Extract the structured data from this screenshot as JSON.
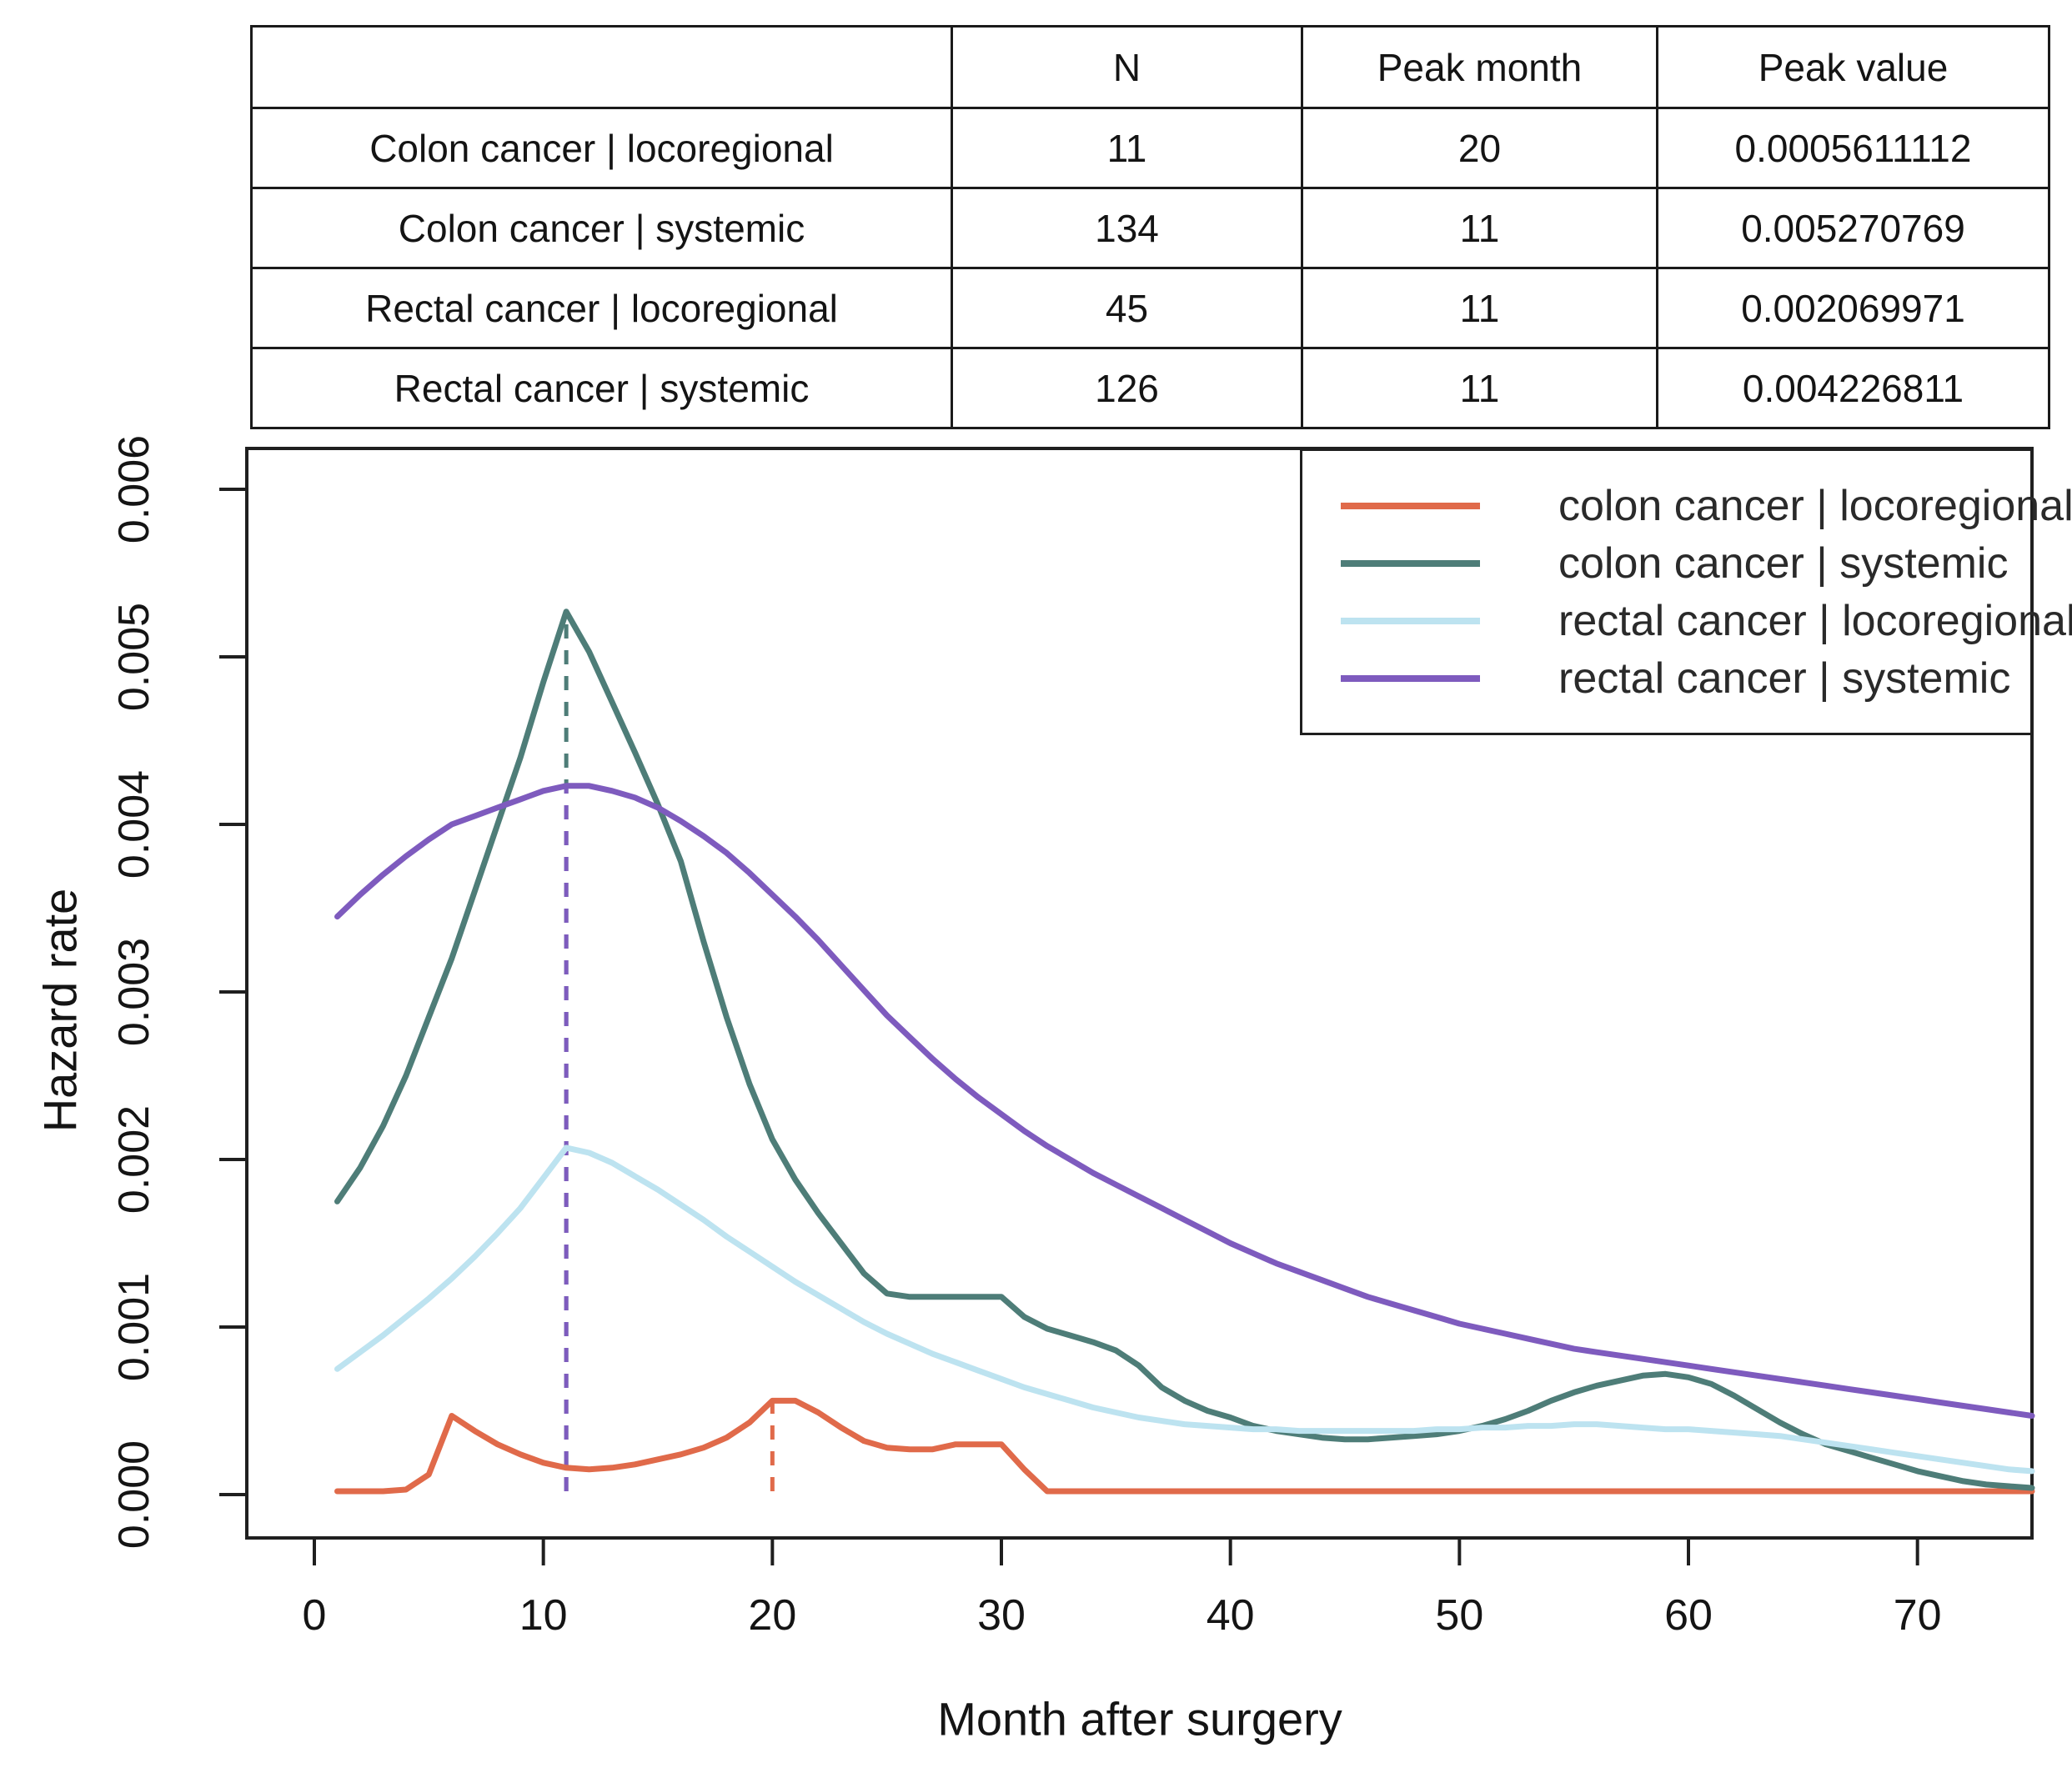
{
  "table": {
    "headers": {
      "name": "",
      "n": "N",
      "peak_month": "Peak month",
      "peak_value": "Peak value"
    },
    "rows": [
      {
        "label": "Colon cancer | locoregional",
        "n": "11",
        "peak_month": "20",
        "peak_value": "0.0005611112"
      },
      {
        "label": "Colon cancer | systemic",
        "n": "134",
        "peak_month": "11",
        "peak_value": "0.005270769"
      },
      {
        "label": "Rectal cancer | locoregional",
        "n": "45",
        "peak_month": "11",
        "peak_value": "0.002069971"
      },
      {
        "label": "Rectal cancer | systemic",
        "n": "126",
        "peak_month": "11",
        "peak_value": "0.004226811"
      }
    ]
  },
  "chart_data": {
    "type": "line",
    "title": "",
    "xlabel": "Month after surgery",
    "ylabel": "Hazard rate",
    "xlim": [
      0,
      75
    ],
    "ylim": [
      0,
      0.006
    ],
    "grid": false,
    "legend_position": "top-right",
    "x_ticks": [
      0,
      10,
      20,
      30,
      40,
      50,
      60,
      70
    ],
    "y_tick_labels": [
      "0.000",
      "0.001",
      "0.002",
      "0.003",
      "0.004",
      "0.005",
      "0.006"
    ],
    "x": [
      1,
      2,
      3,
      4,
      5,
      6,
      7,
      8,
      9,
      10,
      11,
      12,
      13,
      14,
      15,
      16,
      17,
      18,
      19,
      20,
      21,
      22,
      23,
      24,
      25,
      26,
      27,
      28,
      29,
      30,
      31,
      32,
      33,
      34,
      35,
      36,
      37,
      38,
      39,
      40,
      41,
      42,
      43,
      44,
      45,
      46,
      47,
      48,
      49,
      50,
      51,
      52,
      53,
      54,
      55,
      56,
      57,
      58,
      59,
      60,
      61,
      62,
      63,
      64,
      65,
      66,
      67,
      68,
      69,
      70,
      71,
      72,
      73,
      74,
      75
    ],
    "series": [
      {
        "name": "colon cancer | locoregional",
        "color": "#E06A4A",
        "peak_month": 20,
        "peak_value": 0.0005611112,
        "values": [
          2e-05,
          2e-05,
          2e-05,
          3e-05,
          0.00012,
          0.00047,
          0.00038,
          0.0003,
          0.00024,
          0.00019,
          0.00016,
          0.00015,
          0.00016,
          0.00018,
          0.00021,
          0.00024,
          0.00028,
          0.00034,
          0.00043,
          0.00056,
          0.00056,
          0.00049,
          0.0004,
          0.00032,
          0.00028,
          0.00027,
          0.00027,
          0.0003,
          0.0003,
          0.0003,
          0.00015,
          2e-05,
          2e-05,
          2e-05,
          2e-05,
          2e-05,
          2e-05,
          2e-05,
          2e-05,
          2e-05,
          2e-05,
          2e-05,
          2e-05,
          2e-05,
          2e-05,
          2e-05,
          2e-05,
          2e-05,
          2e-05,
          2e-05,
          2e-05,
          2e-05,
          2e-05,
          2e-05,
          2e-05,
          2e-05,
          2e-05,
          2e-05,
          2e-05,
          2e-05,
          2e-05,
          2e-05,
          2e-05,
          2e-05,
          2e-05,
          2e-05,
          2e-05,
          2e-05,
          2e-05,
          2e-05,
          2e-05,
          2e-05,
          2e-05,
          2e-05,
          2e-05
        ]
      },
      {
        "name": "colon cancer | systemic",
        "color": "#4E7D78",
        "peak_month": 11,
        "peak_value": 0.005270769,
        "values": [
          0.00175,
          0.00195,
          0.0022,
          0.0025,
          0.00285,
          0.0032,
          0.0036,
          0.004,
          0.0044,
          0.00485,
          0.00527,
          0.00503,
          0.00473,
          0.00443,
          0.00412,
          0.00378,
          0.0033,
          0.00285,
          0.00245,
          0.00212,
          0.00188,
          0.00168,
          0.0015,
          0.00132,
          0.0012,
          0.00118,
          0.00118,
          0.00118,
          0.00118,
          0.00118,
          0.00106,
          0.00099,
          0.00095,
          0.00091,
          0.00086,
          0.00077,
          0.00064,
          0.00056,
          0.0005,
          0.00046,
          0.00041,
          0.00038,
          0.00036,
          0.00034,
          0.00033,
          0.00033,
          0.00034,
          0.00035,
          0.00036,
          0.00038,
          0.00041,
          0.00045,
          0.0005,
          0.00056,
          0.00061,
          0.00065,
          0.00068,
          0.00071,
          0.00072,
          0.0007,
          0.00066,
          0.00059,
          0.00051,
          0.00043,
          0.00036,
          0.0003,
          0.00026,
          0.00022,
          0.00018,
          0.00014,
          0.00011,
          8e-05,
          6e-05,
          5e-05,
          4e-05
        ]
      },
      {
        "name": "rectal cancer | locoregional",
        "color": "#BDE3F0",
        "peak_month": 11,
        "peak_value": 0.002069971,
        "values": [
          0.00075,
          0.00085,
          0.00095,
          0.00106,
          0.00117,
          0.00129,
          0.00142,
          0.00156,
          0.00171,
          0.00189,
          0.00207,
          0.00204,
          0.00198,
          0.0019,
          0.00182,
          0.00173,
          0.00164,
          0.00154,
          0.00145,
          0.00136,
          0.00127,
          0.00119,
          0.00111,
          0.00103,
          0.00096,
          0.0009,
          0.00084,
          0.00079,
          0.00074,
          0.00069,
          0.00064,
          0.0006,
          0.00056,
          0.00052,
          0.00049,
          0.00046,
          0.00044,
          0.00042,
          0.00041,
          0.0004,
          0.00039,
          0.00039,
          0.00038,
          0.00038,
          0.00038,
          0.00038,
          0.00038,
          0.00038,
          0.00039,
          0.00039,
          0.0004,
          0.0004,
          0.00041,
          0.00041,
          0.00042,
          0.00042,
          0.00041,
          0.0004,
          0.00039,
          0.00039,
          0.00038,
          0.00037,
          0.00036,
          0.00035,
          0.00033,
          0.00031,
          0.00029,
          0.00027,
          0.00025,
          0.00023,
          0.00021,
          0.00019,
          0.00017,
          0.00015,
          0.00014
        ]
      },
      {
        "name": "rectal cancer | systemic",
        "color": "#7E5BBE",
        "peak_month": 11,
        "peak_value": 0.004226811,
        "values": [
          0.00345,
          0.00358,
          0.0037,
          0.00381,
          0.00391,
          0.004,
          0.00405,
          0.0041,
          0.00415,
          0.0042,
          0.00423,
          0.00423,
          0.0042,
          0.00416,
          0.0041,
          0.00402,
          0.00393,
          0.00383,
          0.00371,
          0.00358,
          0.00345,
          0.00331,
          0.00316,
          0.00301,
          0.00286,
          0.00273,
          0.0026,
          0.00248,
          0.00237,
          0.00227,
          0.00217,
          0.00208,
          0.002,
          0.00192,
          0.00185,
          0.00178,
          0.00171,
          0.00164,
          0.00157,
          0.0015,
          0.00144,
          0.00138,
          0.00133,
          0.00128,
          0.00123,
          0.00118,
          0.00114,
          0.0011,
          0.00106,
          0.00102,
          0.00099,
          0.00096,
          0.00093,
          0.0009,
          0.00087,
          0.00085,
          0.00083,
          0.00081,
          0.00079,
          0.00077,
          0.00075,
          0.00073,
          0.00071,
          0.00069,
          0.00067,
          0.00065,
          0.00063,
          0.00061,
          0.00059,
          0.00057,
          0.00055,
          0.00053,
          0.00051,
          0.00049,
          0.00047
        ]
      }
    ],
    "peak_lines": [
      {
        "month": 11,
        "to_value": 0.005270769,
        "color": "#4E7D78"
      },
      {
        "month": 11,
        "to_value": 0.004226811,
        "color": "#7E5BBE"
      },
      {
        "month": 20,
        "to_value": 0.0005611112,
        "color": "#E06A4A"
      }
    ]
  }
}
